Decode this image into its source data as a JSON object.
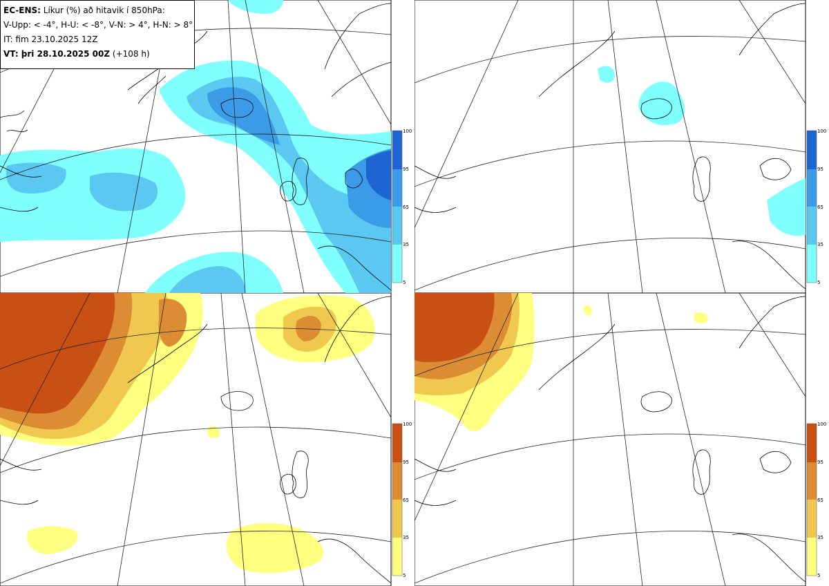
{
  "header": {
    "title_bold": "EC-ENS:",
    "title_rest": "Líkur (%) að hitavik í 850hPa:",
    "thresholds": "V-Upp: < -4°, H-U: < -8°, V-N: > 4°, H-N: > 8°",
    "initial_time": "IT: fim 23.10.2025 12Z",
    "valid_time_bold": "VT: þri 28.10.2025 00Z",
    "valid_time_rest": "(+108 h)"
  },
  "colorbar": {
    "ticks": [
      "100",
      "95",
      "65",
      "35",
      "5"
    ]
  },
  "panels": [
    {
      "id": "top-left",
      "variable": "V-Upp",
      "colors": [
        "#80ffff",
        "#5ac8f0",
        "#3c9be6",
        "#1e64d2"
      ]
    },
    {
      "id": "top-right",
      "variable": "H-U",
      "colors": [
        "#80ffff",
        "#5ac8f0",
        "#3c9be6",
        "#1e64d2"
      ]
    },
    {
      "id": "bottom-left",
      "variable": "V-N",
      "colors": [
        "#ffff80",
        "#f0c850",
        "#dc8c32",
        "#c85014"
      ]
    },
    {
      "id": "bottom-right",
      "variable": "H-N",
      "colors": [
        "#ffff80",
        "#f0c850",
        "#dc8c32",
        "#c85014"
      ]
    }
  ]
}
